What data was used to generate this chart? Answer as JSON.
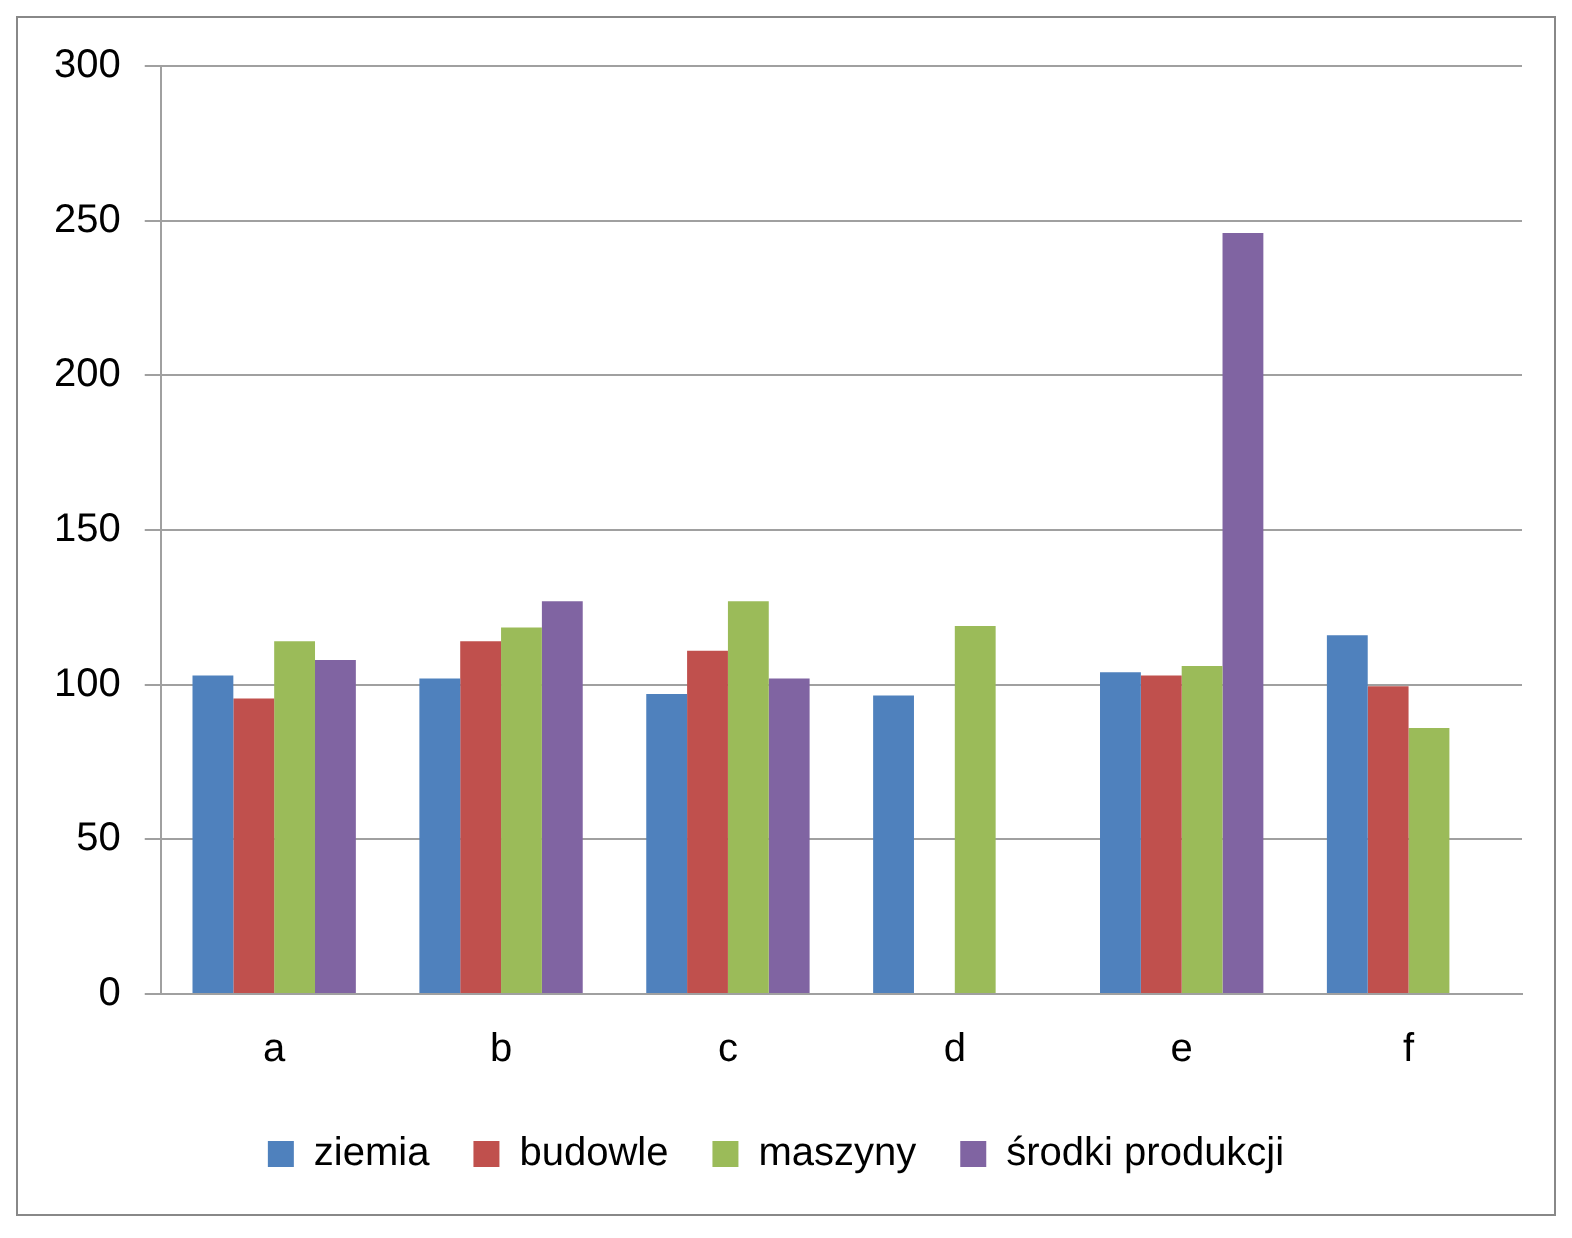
{
  "chart_data": {
    "type": "bar",
    "categories": [
      "a",
      "b",
      "c",
      "d",
      "e",
      "f"
    ],
    "series": [
      {
        "name": "ziemia",
        "color": "#4f81bd",
        "values": [
          103,
          102,
          97,
          96.5,
          104,
          116
        ]
      },
      {
        "name": "budowle",
        "color": "#c0504d",
        "values": [
          95.5,
          114,
          111,
          null,
          103,
          99.5
        ]
      },
      {
        "name": "maszyny",
        "color": "#9bbb59",
        "values": [
          114,
          118.5,
          127,
          119,
          106,
          86
        ]
      },
      {
        "name": "środki produkcji",
        "color": "#8064a2",
        "values": [
          108,
          127,
          102,
          null,
          246,
          null
        ]
      }
    ],
    "ylim": [
      0,
      300
    ],
    "yticks": [
      0,
      50,
      100,
      150,
      200,
      250,
      300
    ],
    "grid": "y",
    "legend": "bottom"
  }
}
